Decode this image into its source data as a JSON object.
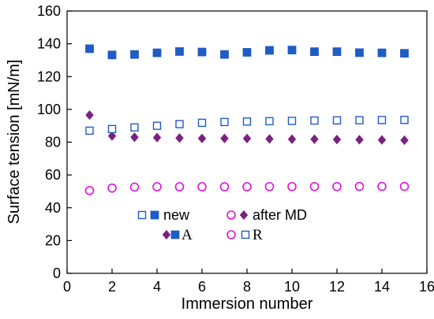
{
  "chart_data": {
    "type": "scatter",
    "title": "",
    "xlabel": "Immersion number",
    "ylabel": "Surface tension [mN/m]",
    "xlim": [
      0,
      16
    ],
    "ylim": [
      0,
      160
    ],
    "xticks": [
      "0",
      "2",
      "4",
      "6",
      "8",
      "10",
      "12",
      "14",
      "16"
    ],
    "yticks": [
      "0",
      "20",
      "40",
      "60",
      "80",
      "100",
      "120",
      "140",
      "160"
    ],
    "grid": false,
    "series": [
      {
        "key": "advancing_after_md",
        "marker": "diamond",
        "filled": true,
        "color": "#7b2180",
        "x": [
          1,
          2,
          3,
          4,
          5,
          6,
          7,
          8,
          9,
          10,
          11,
          12,
          13,
          14,
          15
        ],
        "y": [
          96.5,
          83.8,
          83,
          82.8,
          82.5,
          82.3,
          82.3,
          82.2,
          82,
          81.8,
          81.8,
          81.6,
          81.5,
          81.4,
          81.2
        ]
      },
      {
        "key": "advancing_new",
        "marker": "square",
        "filled": true,
        "color": "#1f5cc4",
        "x": [
          1,
          2,
          3,
          4,
          5,
          6,
          7,
          8,
          9,
          10,
          11,
          12,
          13,
          14,
          15
        ],
        "y": [
          137,
          133.2,
          133.5,
          134.5,
          135.3,
          135,
          133.5,
          134.8,
          136,
          136.2,
          135.2,
          135.2,
          134.6,
          134.5,
          134.2
        ]
      },
      {
        "key": "receding_after_md",
        "marker": "circle",
        "filled": false,
        "color": "#e010e0",
        "x": [
          1,
          2,
          3,
          4,
          5,
          6,
          7,
          8,
          9,
          10,
          11,
          12,
          13,
          14,
          15
        ],
        "y": [
          50.5,
          52,
          52.6,
          52.8,
          52.8,
          52.8,
          52.8,
          52.8,
          52.9,
          52.9,
          52.9,
          52.9,
          53,
          53,
          53
        ]
      },
      {
        "key": "receding_new",
        "marker": "square",
        "filled": false,
        "color": "#1f5cc4",
        "x": [
          1,
          2,
          3,
          4,
          5,
          6,
          7,
          8,
          9,
          10,
          11,
          12,
          13,
          14,
          15
        ],
        "y": [
          87,
          88,
          89,
          90,
          91,
          91.8,
          92.3,
          92.6,
          92.8,
          93,
          93.2,
          93.3,
          93.4,
          93.5,
          93.6
        ]
      }
    ],
    "legend": {
      "placement": "lower-center",
      "rows": [
        [
          {
            "markers": [
              {
                "marker": "square",
                "filled": false,
                "color": "#1f5cc4"
              },
              {
                "marker": "square",
                "filled": true,
                "color": "#1f5cc4"
              }
            ],
            "label": "new"
          },
          {
            "markers": [
              {
                "marker": "circle",
                "filled": false,
                "color": "#e010e0"
              },
              {
                "marker": "diamond",
                "filled": true,
                "color": "#7b2180"
              }
            ],
            "label": "after MD"
          }
        ],
        [
          {
            "markers": [
              {
                "marker": "diamond",
                "filled": true,
                "color": "#7b2180"
              },
              {
                "marker": "square",
                "filled": true,
                "color": "#1f5cc4"
              }
            ],
            "label": "A"
          },
          {
            "markers": [
              {
                "marker": "circle",
                "filled": false,
                "color": "#e010e0"
              },
              {
                "marker": "square",
                "filled": false,
                "color": "#1f5cc4"
              }
            ],
            "label": "R"
          }
        ]
      ]
    }
  }
}
